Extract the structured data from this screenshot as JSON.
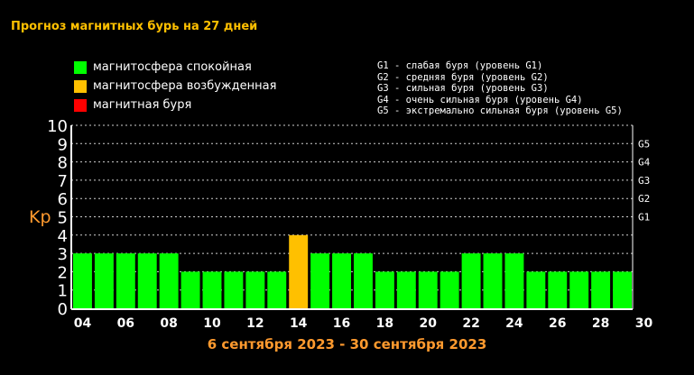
{
  "title": "Прогноз магнитных бурь на 27 дней",
  "legend": [
    {
      "label": "магнитосфера спокойная",
      "color": "#00ff00"
    },
    {
      "label": "магнитосфера возбужденная",
      "color": "#ffc000"
    },
    {
      "label": "магнитная буря",
      "color": "#ff0000"
    }
  ],
  "g_scale": [
    "G1 - слабая буря (уровень G1)",
    "G2 - средняя буря (уровень G2)",
    "G3 - сильная буря (уровень G3)",
    "G4 - очень сильная буря (уровень G4)",
    "G5 - экстремально сильная буря (уровень G5)"
  ],
  "date_range": "6 сентября 2023 - 30 сентября 2023",
  "chart_data": {
    "type": "bar",
    "ylabel": "Kp",
    "ylim": [
      0,
      10
    ],
    "yticks": [
      "0",
      "1",
      "2",
      "3",
      "4",
      "5",
      "6",
      "7",
      "8",
      "9",
      "10"
    ],
    "right_ticks": [
      {
        "label": "G1",
        "kp": 5
      },
      {
        "label": "G2",
        "kp": 6
      },
      {
        "label": "G3",
        "kp": 7
      },
      {
        "label": "G4",
        "kp": 8
      },
      {
        "label": "G5",
        "kp": 9
      }
    ],
    "xtick_labels": [
      "04",
      "06",
      "08",
      "10",
      "12",
      "14",
      "16",
      "18",
      "20",
      "22",
      "24",
      "26",
      "28",
      "30"
    ],
    "values": [
      3,
      3,
      3,
      3,
      3,
      2,
      2,
      2,
      2,
      2,
      4,
      3,
      3,
      3,
      2,
      2,
      2,
      2,
      3,
      3,
      3,
      2,
      2,
      2,
      2,
      2
    ],
    "bar_colors": [
      "#00ff00",
      "#00ff00",
      "#00ff00",
      "#00ff00",
      "#00ff00",
      "#00ff00",
      "#00ff00",
      "#00ff00",
      "#00ff00",
      "#00ff00",
      "#ffc000",
      "#00ff00",
      "#00ff00",
      "#00ff00",
      "#00ff00",
      "#00ff00",
      "#00ff00",
      "#00ff00",
      "#00ff00",
      "#00ff00",
      "#00ff00",
      "#00ff00",
      "#00ff00",
      "#00ff00",
      "#00ff00",
      "#00ff00"
    ],
    "grid": true
  }
}
